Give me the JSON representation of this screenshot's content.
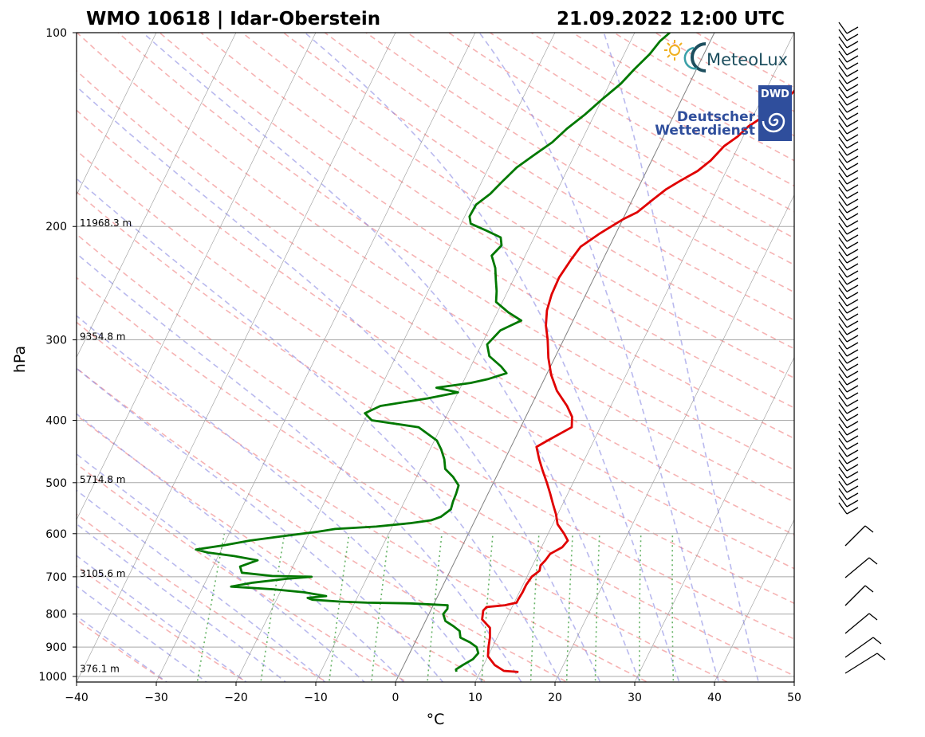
{
  "chart_data": {
    "type": "line",
    "subtype": "skew-T log-P sounding",
    "title_left": "WMO 10618 | Idar-Oberstein",
    "title_right": "21.09.2022 12:00 UTC",
    "xlabel": "°C",
    "ylabel": "hPa",
    "xlim": [
      -40,
      50
    ],
    "ylim": [
      1020,
      100
    ],
    "y_scale": "log",
    "x_ticks": [
      "−40",
      "−30",
      "−20",
      "−10",
      "0",
      "10",
      "20",
      "30",
      "40",
      "50"
    ],
    "y_ticks": [
      "100",
      "200",
      "300",
      "400",
      "500",
      "600",
      "700",
      "800",
      "900",
      "1000"
    ],
    "height_labels": [
      {
        "p": 200,
        "text": "11968.3 m"
      },
      {
        "p": 300,
        "text": "9354.8 m"
      },
      {
        "p": 500,
        "text": "5714.8 m"
      },
      {
        "p": 700,
        "text": "3105.6 m"
      },
      {
        "p": 985,
        "text": "376.1 m"
      }
    ],
    "series": [
      {
        "color": "#e00000",
        "points": [
          [
            984,
            14.8
          ],
          [
            980,
            12.9
          ],
          [
            960,
            11.4
          ],
          [
            930,
            10.0
          ],
          [
            900,
            9.5
          ],
          [
            870,
            9.1
          ],
          [
            840,
            8.5
          ],
          [
            815,
            7.0
          ],
          [
            790,
            6.6
          ],
          [
            780,
            6.8
          ],
          [
            775,
            9.0
          ],
          [
            768,
            10.3
          ],
          [
            760,
            10.3
          ],
          [
            740,
            10.4
          ],
          [
            720,
            10.4
          ],
          [
            700,
            10.6
          ],
          [
            685,
            11.2
          ],
          [
            672,
            11.0
          ],
          [
            660,
            11.3
          ],
          [
            645,
            11.5
          ],
          [
            630,
            12.6
          ],
          [
            615,
            12.9
          ],
          [
            600,
            12.0
          ],
          [
            580,
            10.6
          ],
          [
            560,
            9.8
          ],
          [
            540,
            8.8
          ],
          [
            520,
            7.8
          ],
          [
            500,
            6.7
          ],
          [
            480,
            5.5
          ],
          [
            460,
            4.3
          ],
          [
            440,
            3.2
          ],
          [
            430,
            4.2
          ],
          [
            410,
            6.4
          ],
          [
            395,
            5.8
          ],
          [
            380,
            4.5
          ],
          [
            360,
            2.3
          ],
          [
            340,
            0.6
          ],
          [
            320,
            -0.8
          ],
          [
            300,
            -2.0
          ],
          [
            285,
            -3.1
          ],
          [
            270,
            -3.9
          ],
          [
            255,
            -4.3
          ],
          [
            240,
            -4.4
          ],
          [
            225,
            -4.0
          ],
          [
            215,
            -3.6
          ],
          [
            205,
            -2.0
          ],
          [
            195,
            0.0
          ],
          [
            190,
            1.4
          ],
          [
            182,
            2.5
          ],
          [
            175,
            3.6
          ],
          [
            170,
            4.8
          ],
          [
            164,
            6.4
          ],
          [
            158,
            7.4
          ],
          [
            150,
            8.2
          ],
          [
            145,
            9.3
          ],
          [
            140,
            10.0
          ],
          [
            135,
            11.3
          ],
          [
            130,
            12.5
          ],
          [
            124,
            13.5
          ],
          [
            118,
            14.2
          ],
          [
            112,
            15.0
          ],
          [
            106,
            16.3
          ],
          [
            102,
            17.5
          ],
          [
            100,
            18.0
          ]
        ]
      },
      {
        "color": "#007800",
        "points": [
          [
            983,
            7.0
          ],
          [
            975,
            6.8
          ],
          [
            960,
            7.4
          ],
          [
            940,
            8.3
          ],
          [
            920,
            8.6
          ],
          [
            900,
            8.0
          ],
          [
            885,
            6.9
          ],
          [
            870,
            5.4
          ],
          [
            850,
            4.9
          ],
          [
            835,
            3.8
          ],
          [
            820,
            2.5
          ],
          [
            800,
            1.8
          ],
          [
            785,
            2.0
          ],
          [
            775,
            1.8
          ],
          [
            770,
            -3.0
          ],
          [
            768,
            -8.5
          ],
          [
            765,
            -12.0
          ],
          [
            760,
            -15.5
          ],
          [
            755,
            -16.2
          ],
          [
            750,
            -14.0
          ],
          [
            740,
            -17.0
          ],
          [
            732,
            -21.0
          ],
          [
            725,
            -26.5
          ],
          [
            715,
            -24.0
          ],
          [
            705,
            -20.0
          ],
          [
            700,
            -17.0
          ],
          [
            698,
            -22.0
          ],
          [
            690,
            -26.0
          ],
          [
            675,
            -26.6
          ],
          [
            660,
            -24.8
          ],
          [
            650,
            -28.0
          ],
          [
            642,
            -31.5
          ],
          [
            635,
            -33.2
          ],
          [
            625,
            -29.8
          ],
          [
            615,
            -27.0
          ],
          [
            605,
            -23.0
          ],
          [
            596,
            -19.0
          ],
          [
            590,
            -17.0
          ],
          [
            585,
            -12.0
          ],
          [
            578,
            -8.0
          ],
          [
            572,
            -5.5
          ],
          [
            565,
            -4.5
          ],
          [
            550,
            -3.7
          ],
          [
            535,
            -3.9
          ],
          [
            520,
            -4.0
          ],
          [
            505,
            -4.2
          ],
          [
            490,
            -5.4
          ],
          [
            476,
            -6.9
          ],
          [
            460,
            -7.6
          ],
          [
            444,
            -8.6
          ],
          [
            430,
            -9.7
          ],
          [
            410,
            -12.8
          ],
          [
            400,
            -19.1
          ],
          [
            390,
            -20.4
          ],
          [
            380,
            -18.9
          ],
          [
            370,
            -13.5
          ],
          [
            362,
            -10.0
          ],
          [
            356,
            -13.0
          ],
          [
            350,
            -9.0
          ],
          [
            345,
            -7.0
          ],
          [
            338,
            -5.1
          ],
          [
            330,
            -6.2
          ],
          [
            318,
            -8.3
          ],
          [
            305,
            -9.3
          ],
          [
            290,
            -8.5
          ],
          [
            280,
            -6.5
          ],
          [
            272,
            -8.6
          ],
          [
            262,
            -10.8
          ],
          [
            252,
            -11.4
          ],
          [
            242,
            -12.2
          ],
          [
            232,
            -13.0
          ],
          [
            222,
            -14.2
          ],
          [
            214,
            -13.6
          ],
          [
            208,
            -14.2
          ],
          [
            203,
            -16.4
          ],
          [
            198,
            -18.8
          ],
          [
            193,
            -19.4
          ],
          [
            185,
            -19.3
          ],
          [
            178,
            -18.2
          ],
          [
            170,
            -17.4
          ],
          [
            162,
            -16.5
          ],
          [
            155,
            -15.1
          ],
          [
            148,
            -13.6
          ],
          [
            141,
            -12.6
          ],
          [
            134,
            -11.2
          ],
          [
            127,
            -10.0
          ],
          [
            120,
            -8.6
          ],
          [
            114,
            -7.8
          ],
          [
            108,
            -6.8
          ],
          [
            103,
            -6.3
          ],
          [
            100,
            -5.6
          ]
        ]
      }
    ],
    "wind_barbs": "wind barbs at right by pressure level",
    "colors": {
      "isobar": "#a8a8a8",
      "isotherm": "#808080",
      "dry_adiabat": "#f08080",
      "moist_adiabat": "#8080e0",
      "mixing_ratio": "#40a040"
    }
  },
  "logos": {
    "meteolux": "MeteoLux",
    "dwd_box": "DWD",
    "dwd_line1": "Deutscher",
    "dwd_line2": "Wetterdienst"
  }
}
